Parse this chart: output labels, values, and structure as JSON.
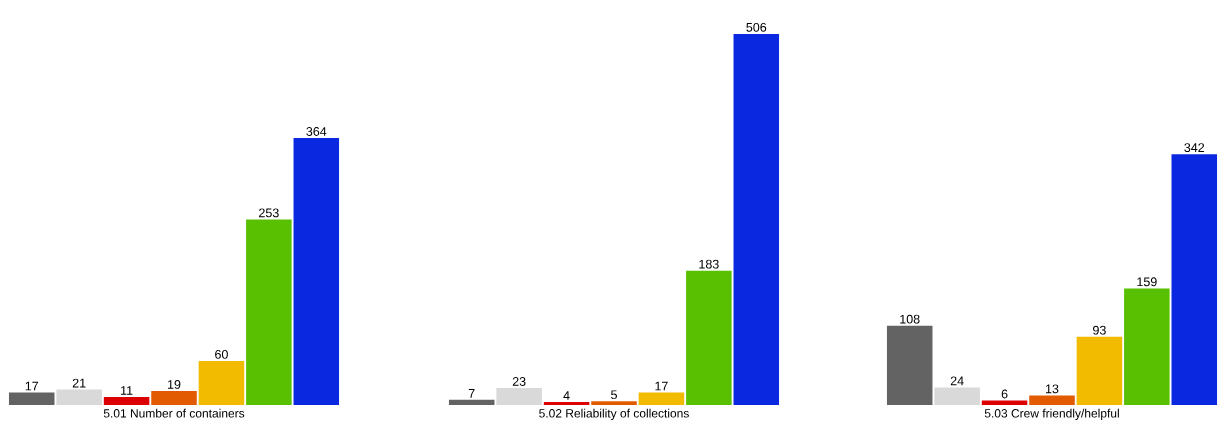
{
  "chart_data": [
    {
      "type": "bar",
      "xlabel": "5.01 Number of containers",
      "categories": [
        null,
        null,
        null,
        null,
        null,
        null,
        null
      ],
      "values": [
        17,
        21,
        11,
        19,
        60,
        253,
        364
      ],
      "colors": [
        "#636363",
        "#d9d9d9",
        "#dd0000",
        "#e35b00",
        "#f2bb00",
        "#58c000",
        "#0a28e0"
      ],
      "data_labels": true
    },
    {
      "type": "bar",
      "xlabel": "5.02 Reliability of collections",
      "categories": [
        null,
        null,
        null,
        null,
        null,
        null,
        null
      ],
      "values": [
        7,
        23,
        4,
        5,
        17,
        183,
        506
      ],
      "colors": [
        "#636363",
        "#d9d9d9",
        "#dd0000",
        "#e35b00",
        "#f2bb00",
        "#58c000",
        "#0a28e0"
      ],
      "data_labels": true
    },
    {
      "type": "bar",
      "xlabel": "5.03 Crew friendly/helpful",
      "categories": [
        null,
        null,
        null,
        null,
        null,
        null,
        null
      ],
      "values": [
        108,
        24,
        6,
        13,
        93,
        159,
        342
      ],
      "colors": [
        "#636363",
        "#d9d9d9",
        "#dd0000",
        "#e35b00",
        "#f2bb00",
        "#58c000",
        "#0a28e0"
      ],
      "data_labels": true
    }
  ]
}
